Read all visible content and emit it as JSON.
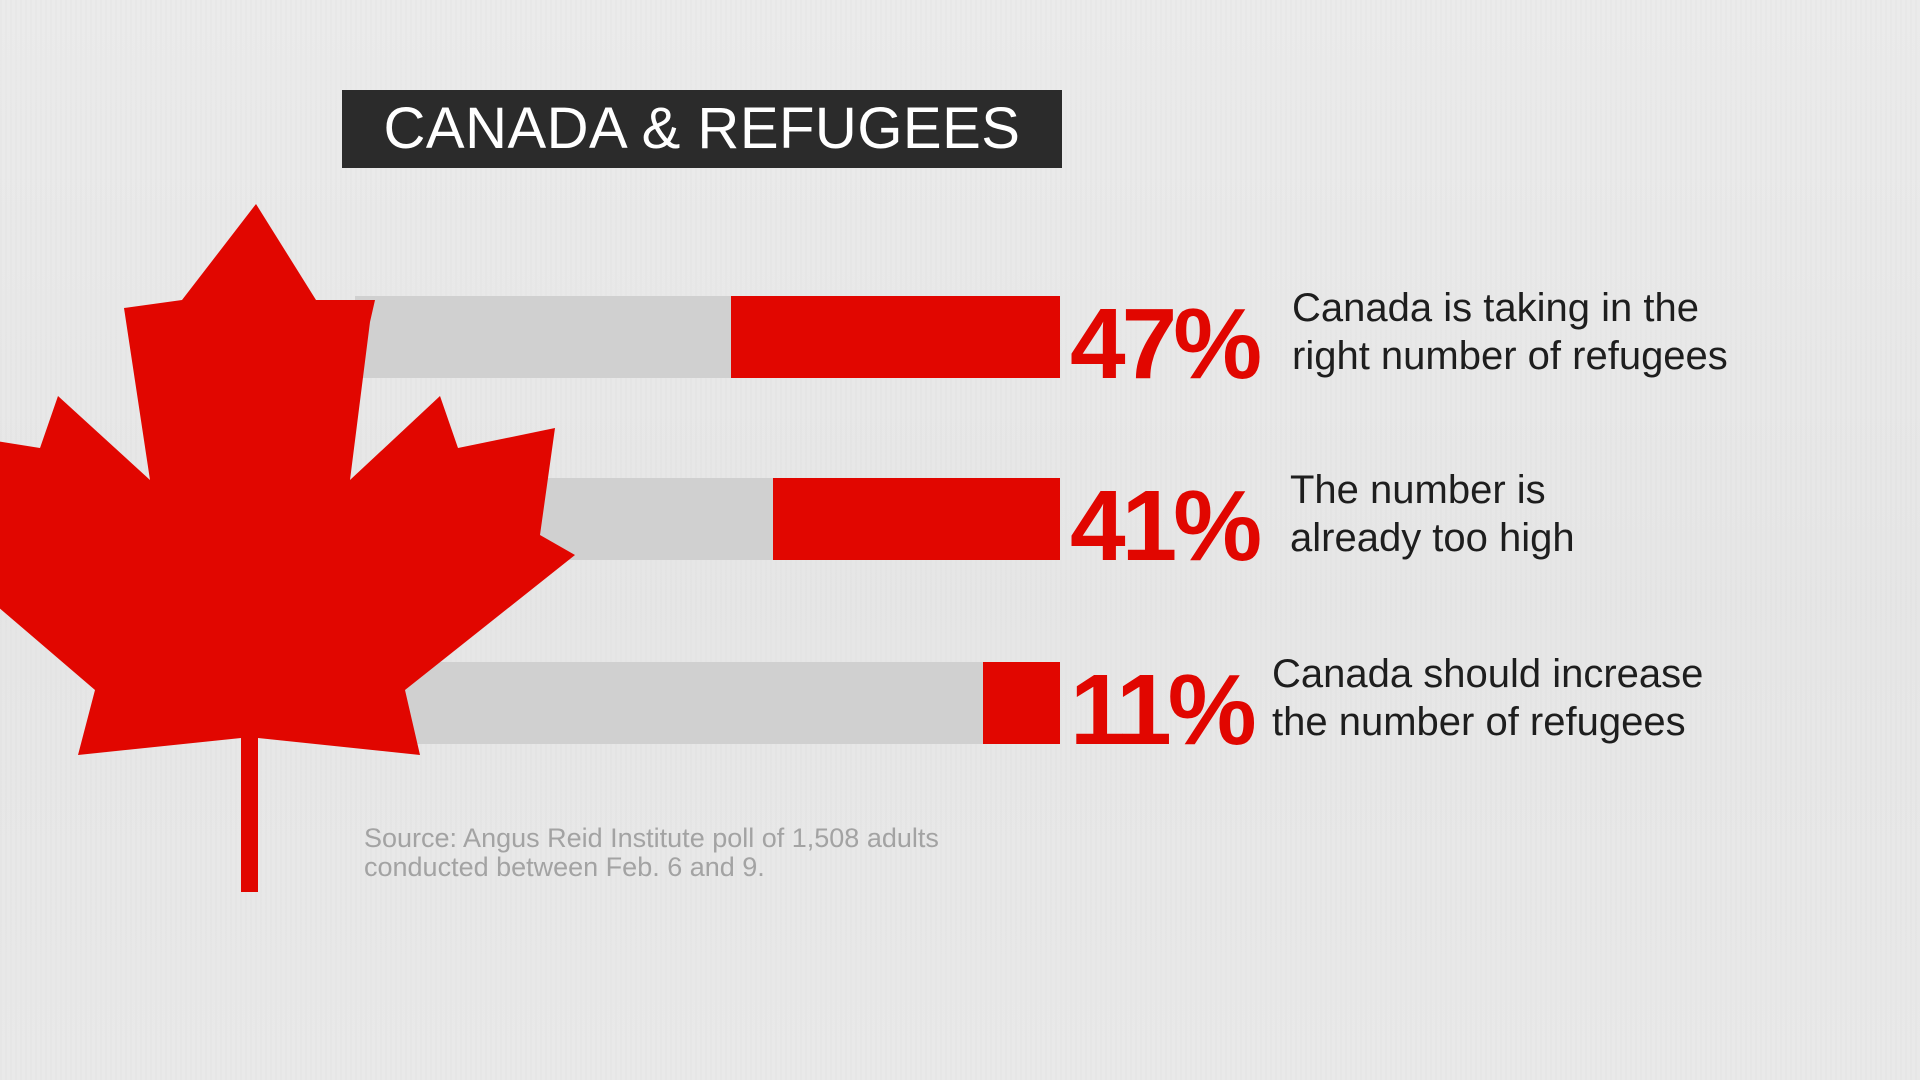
{
  "title": "CANADA & REFUGEES",
  "source": {
    "line1": "Source: Angus Reid Institute poll of 1,508 adults",
    "line2": "conducted between Feb. 6 and 9."
  },
  "colors": {
    "accent": "#e10600",
    "track": "#d0d0d0",
    "title_bg": "#2b2b2b",
    "background": "#e8e8e8"
  },
  "icon": "maple-leaf-icon",
  "chart_data": {
    "type": "bar",
    "orientation": "horizontal",
    "unit": "%",
    "categories": [
      [
        "Canada is taking in the",
        "right number of refugees"
      ],
      [
        "The number is",
        "already too high"
      ],
      [
        "Canada should increase",
        "the number of refugees"
      ]
    ],
    "values": [
      47,
      41,
      11
    ],
    "value_labels": [
      "47%",
      "41%",
      "11%"
    ],
    "xlim": [
      0,
      100
    ]
  }
}
